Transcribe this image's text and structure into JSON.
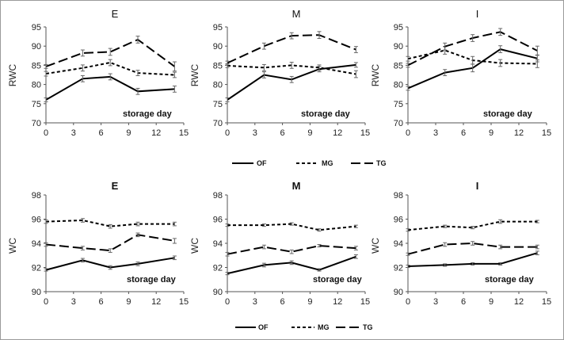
{
  "chart_data": [
    {
      "type": "line",
      "title": "E",
      "xlabel": "storage day",
      "ylabel": "RWC",
      "xlim": [
        0,
        15
      ],
      "ylim": [
        70,
        95
      ],
      "xticks": [
        "0",
        "3",
        "6",
        "9",
        "12",
        "15"
      ],
      "yticks": [
        "70",
        "75",
        "80",
        "85",
        "90",
        "95"
      ],
      "series": [
        {
          "name": "OF",
          "x": [
            0,
            4,
            7,
            10,
            14
          ],
          "y": [
            76.0,
            81.5,
            82.0,
            78.2,
            78.8
          ],
          "err": [
            0.5,
            0.8,
            0.8,
            0.8,
            0.8
          ]
        },
        {
          "name": "MG",
          "x": [
            0,
            4,
            7,
            10,
            14
          ],
          "y": [
            82.8,
            84.3,
            85.7,
            83.0,
            82.5
          ],
          "err": [
            0.6,
            0.8,
            0.8,
            0.7,
            0.7
          ]
        },
        {
          "name": "TG",
          "x": [
            0,
            4,
            7,
            10,
            14
          ],
          "y": [
            84.7,
            88.2,
            88.5,
            91.7,
            84.7
          ],
          "err": [
            0.5,
            0.8,
            0.9,
            0.9,
            1.2
          ]
        }
      ]
    },
    {
      "type": "line",
      "title": "M",
      "xlabel": "storage day",
      "ylabel": "RWC",
      "xlim": [
        0,
        15
      ],
      "ylim": [
        70,
        95
      ],
      "xticks": [
        "0",
        "3",
        "6",
        "9",
        "12",
        "15"
      ],
      "yticks": [
        "70",
        "75",
        "80",
        "85",
        "90",
        "95"
      ],
      "series": [
        {
          "name": "OF",
          "x": [
            0,
            4,
            7,
            10,
            14
          ],
          "y": [
            76.0,
            82.5,
            81.3,
            84.0,
            85.1
          ],
          "err": [
            0.5,
            0.8,
            0.8,
            0.7,
            0.6
          ]
        },
        {
          "name": "MG",
          "x": [
            0,
            4,
            7,
            10,
            14
          ],
          "y": [
            84.9,
            84.4,
            85.0,
            84.4,
            82.7
          ],
          "err": [
            0.5,
            0.8,
            0.8,
            0.7,
            0.9
          ]
        },
        {
          "name": "TG",
          "x": [
            0,
            4,
            7,
            10,
            14
          ],
          "y": [
            85.6,
            90.0,
            92.7,
            92.9,
            89.1
          ],
          "err": [
            0.5,
            0.8,
            0.8,
            0.9,
            0.8
          ]
        }
      ]
    },
    {
      "type": "line",
      "title": "I",
      "xlabel": "storage day",
      "ylabel": "RWC",
      "xlim": [
        0,
        15
      ],
      "ylim": [
        70,
        95
      ],
      "xticks": [
        "0",
        "3",
        "6",
        "9",
        "12",
        "15"
      ],
      "yticks": [
        "70",
        "75",
        "80",
        "85",
        "90",
        "95"
      ],
      "series": [
        {
          "name": "OF",
          "x": [
            0,
            4,
            7,
            10,
            14
          ],
          "y": [
            79.0,
            83.1,
            84.3,
            89.2,
            86.8
          ],
          "err": [
            0.5,
            0.8,
            1.0,
            0.9,
            0.9
          ]
        },
        {
          "name": "MG",
          "x": [
            0,
            4,
            7,
            10,
            14
          ],
          "y": [
            86.7,
            88.9,
            86.3,
            85.6,
            85.4
          ],
          "err": [
            0.6,
            1.0,
            1.0,
            0.9,
            1.0
          ]
        },
        {
          "name": "TG",
          "x": [
            0,
            4,
            7,
            10,
            14
          ],
          "y": [
            85.0,
            89.9,
            92.1,
            93.7,
            88.8
          ],
          "err": [
            0.5,
            0.9,
            0.9,
            0.9,
            1.2
          ]
        }
      ]
    },
    {
      "type": "line",
      "title": "E",
      "xlabel": "storage day",
      "ylabel": "WC",
      "xlim": [
        0,
        15
      ],
      "ylim": [
        90,
        98
      ],
      "xticks": [
        "0",
        "3",
        "6",
        "9",
        "12",
        "15"
      ],
      "yticks": [
        "90",
        "92",
        "94",
        "96",
        "98"
      ],
      "series": [
        {
          "name": "OF",
          "x": [
            0,
            4,
            7,
            10,
            14
          ],
          "y": [
            91.8,
            92.6,
            92.0,
            92.3,
            92.8
          ],
          "err": [
            0.1,
            0.15,
            0.15,
            0.15,
            0.15
          ]
        },
        {
          "name": "MG",
          "x": [
            0,
            4,
            7,
            10,
            14
          ],
          "y": [
            95.8,
            95.9,
            95.4,
            95.6,
            95.6
          ],
          "err": [
            0.15,
            0.15,
            0.15,
            0.15,
            0.15
          ]
        },
        {
          "name": "TG",
          "x": [
            0,
            4,
            7,
            10,
            14
          ],
          "y": [
            93.9,
            93.6,
            93.4,
            94.7,
            94.2
          ],
          "err": [
            0.15,
            0.15,
            0.15,
            0.15,
            0.2
          ]
        }
      ]
    },
    {
      "type": "line",
      "title": "M",
      "xlabel": "storage day",
      "ylabel": "WC",
      "xlim": [
        0,
        15
      ],
      "ylim": [
        90,
        98
      ],
      "xticks": [
        "0",
        "3",
        "6",
        "9",
        "12",
        "15"
      ],
      "yticks": [
        "90",
        "92",
        "94",
        "96",
        "98"
      ],
      "series": [
        {
          "name": "OF",
          "x": [
            0,
            4,
            7,
            10,
            14
          ],
          "y": [
            91.5,
            92.2,
            92.4,
            91.8,
            92.9
          ],
          "err": [
            0.1,
            0.15,
            0.15,
            0.1,
            0.15
          ]
        },
        {
          "name": "MG",
          "x": [
            0,
            4,
            7,
            10,
            14
          ],
          "y": [
            95.5,
            95.5,
            95.6,
            95.1,
            95.4
          ],
          "err": [
            0.1,
            0.1,
            0.1,
            0.1,
            0.1
          ]
        },
        {
          "name": "TG",
          "x": [
            0,
            4,
            7,
            10,
            14
          ],
          "y": [
            93.1,
            93.7,
            93.3,
            93.8,
            93.6
          ],
          "err": [
            0.15,
            0.15,
            0.15,
            0.1,
            0.15
          ]
        }
      ]
    },
    {
      "type": "line",
      "title": "I",
      "xlabel": "storage day",
      "ylabel": "WC",
      "xlim": [
        0,
        15
      ],
      "ylim": [
        90,
        98
      ],
      "xticks": [
        "0",
        "3",
        "6",
        "9",
        "12",
        "15"
      ],
      "yticks": [
        "90",
        "92",
        "94",
        "96",
        "98"
      ],
      "series": [
        {
          "name": "OF",
          "x": [
            0,
            4,
            7,
            10,
            14
          ],
          "y": [
            92.1,
            92.2,
            92.3,
            92.3,
            93.2
          ],
          "err": [
            0.1,
            0.1,
            0.1,
            0.1,
            0.15
          ]
        },
        {
          "name": "MG",
          "x": [
            0,
            4,
            7,
            10,
            14
          ],
          "y": [
            95.1,
            95.4,
            95.3,
            95.8,
            95.8
          ],
          "err": [
            0.1,
            0.1,
            0.1,
            0.15,
            0.1
          ]
        },
        {
          "name": "TG",
          "x": [
            0,
            4,
            7,
            10,
            14
          ],
          "y": [
            93.1,
            93.9,
            94.0,
            93.7,
            93.7
          ],
          "err": [
            0.1,
            0.15,
            0.15,
            0.15,
            0.15
          ]
        }
      ]
    }
  ],
  "legends": [
    {
      "entries": [
        "OF",
        "MG",
        "TG"
      ]
    },
    {
      "entries": [
        "OF",
        "MG",
        "TG"
      ]
    }
  ]
}
